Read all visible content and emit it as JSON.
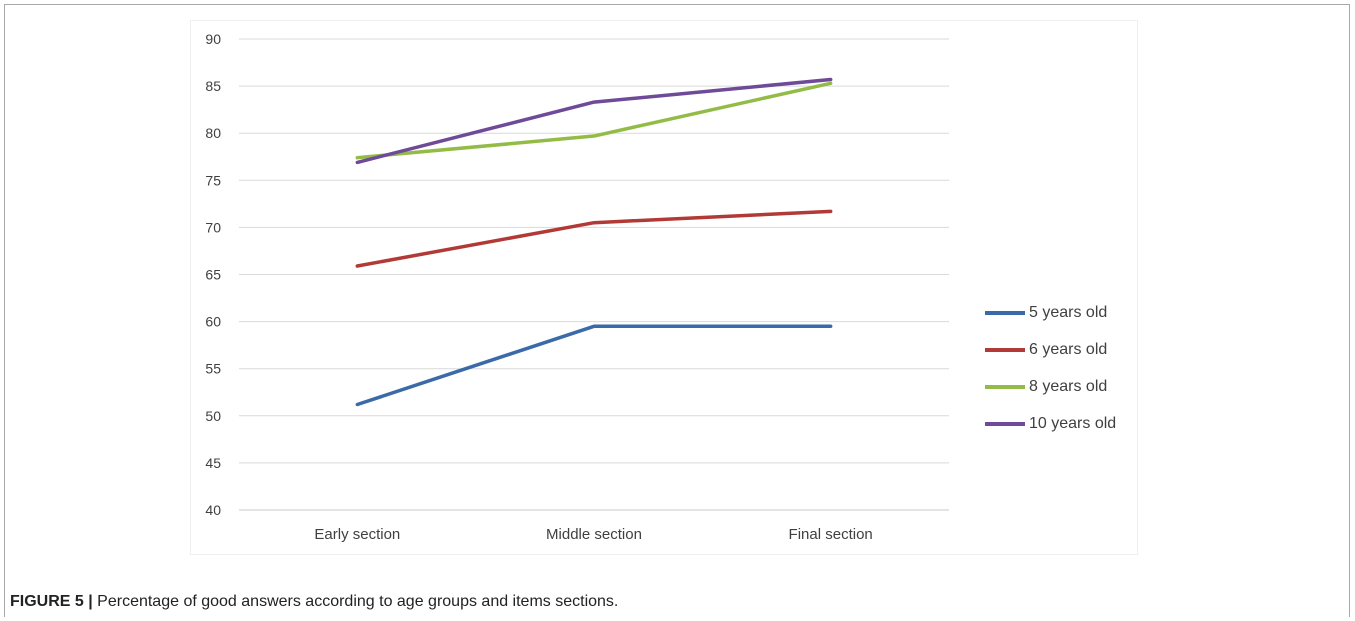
{
  "figure": {
    "caption_label": "FIGURE 5 |",
    "caption_text": " Percentage of good answers according to age groups and items sections."
  },
  "chart_data": {
    "type": "line",
    "title": "",
    "xlabel": "",
    "ylabel": "",
    "categories": [
      "Early section",
      "Middle section",
      "Final section"
    ],
    "ylim": [
      40,
      90
    ],
    "yticks": [
      40,
      45,
      50,
      55,
      60,
      65,
      70,
      75,
      80,
      85,
      90
    ],
    "grid": true,
    "legend_position": "right",
    "series": [
      {
        "name": "5 years old",
        "color": "#3a6aa8",
        "values": [
          51.2,
          59.5,
          59.5
        ]
      },
      {
        "name": "6 years old",
        "color": "#b23a36",
        "values": [
          65.9,
          70.5,
          71.7
        ]
      },
      {
        "name": "8 years old",
        "color": "#93bc47",
        "values": [
          77.4,
          79.7,
          85.3
        ]
      },
      {
        "name": "10 years old",
        "color": "#6e4a98",
        "values": [
          76.9,
          83.3,
          85.7
        ]
      }
    ]
  }
}
